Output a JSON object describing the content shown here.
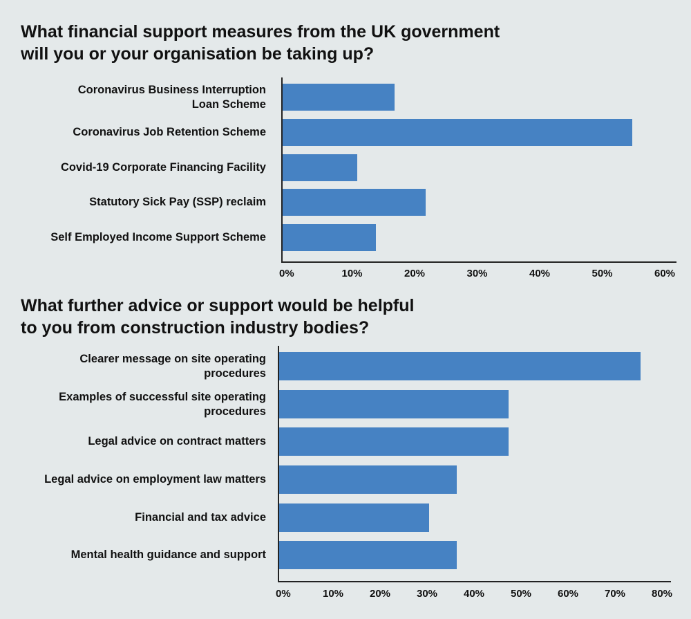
{
  "colors": {
    "bar": "#4682c3",
    "background": "#e4e9ea"
  },
  "chart_data": [
    {
      "type": "bar",
      "orientation": "horizontal",
      "title": "What financial support measures from the UK government\nwill you or your organisation be taking up?",
      "categories": [
        "Coronavirus Business Interruption\nLoan Scheme",
        "Coronavirus Job Retention Scheme",
        "Covid-19 Corporate Financing Facility",
        "Statutory Sick Pay (SSP) reclaim",
        "Self Employed Income Support Scheme"
      ],
      "values": [
        18,
        56,
        12,
        23,
        15
      ],
      "xlim": [
        0,
        60
      ],
      "ticks": [
        "0%",
        "10%",
        "20%",
        "30%",
        "40%",
        "50%",
        "60%"
      ],
      "xlabel": "",
      "ylabel": "",
      "unit": "%"
    },
    {
      "type": "bar",
      "orientation": "horizontal",
      "title": "What further advice or support would be helpful\nto you from construction industry bodies?",
      "categories": [
        "Clearer message on site operating\nprocedures",
        "Examples of successful site operating\nprocedures",
        "Legal advice on contract matters",
        "Legal advice on employment law matters",
        "Financial and tax advice",
        "Mental health guidance and support"
      ],
      "values": [
        77,
        49,
        49,
        38,
        32,
        38
      ],
      "xlim": [
        0,
        80
      ],
      "ticks": [
        "0%",
        "10%",
        "20%",
        "30%",
        "40%",
        "50%",
        "60%",
        "70%",
        "80%"
      ],
      "xlabel": "",
      "ylabel": "",
      "unit": "%"
    }
  ]
}
